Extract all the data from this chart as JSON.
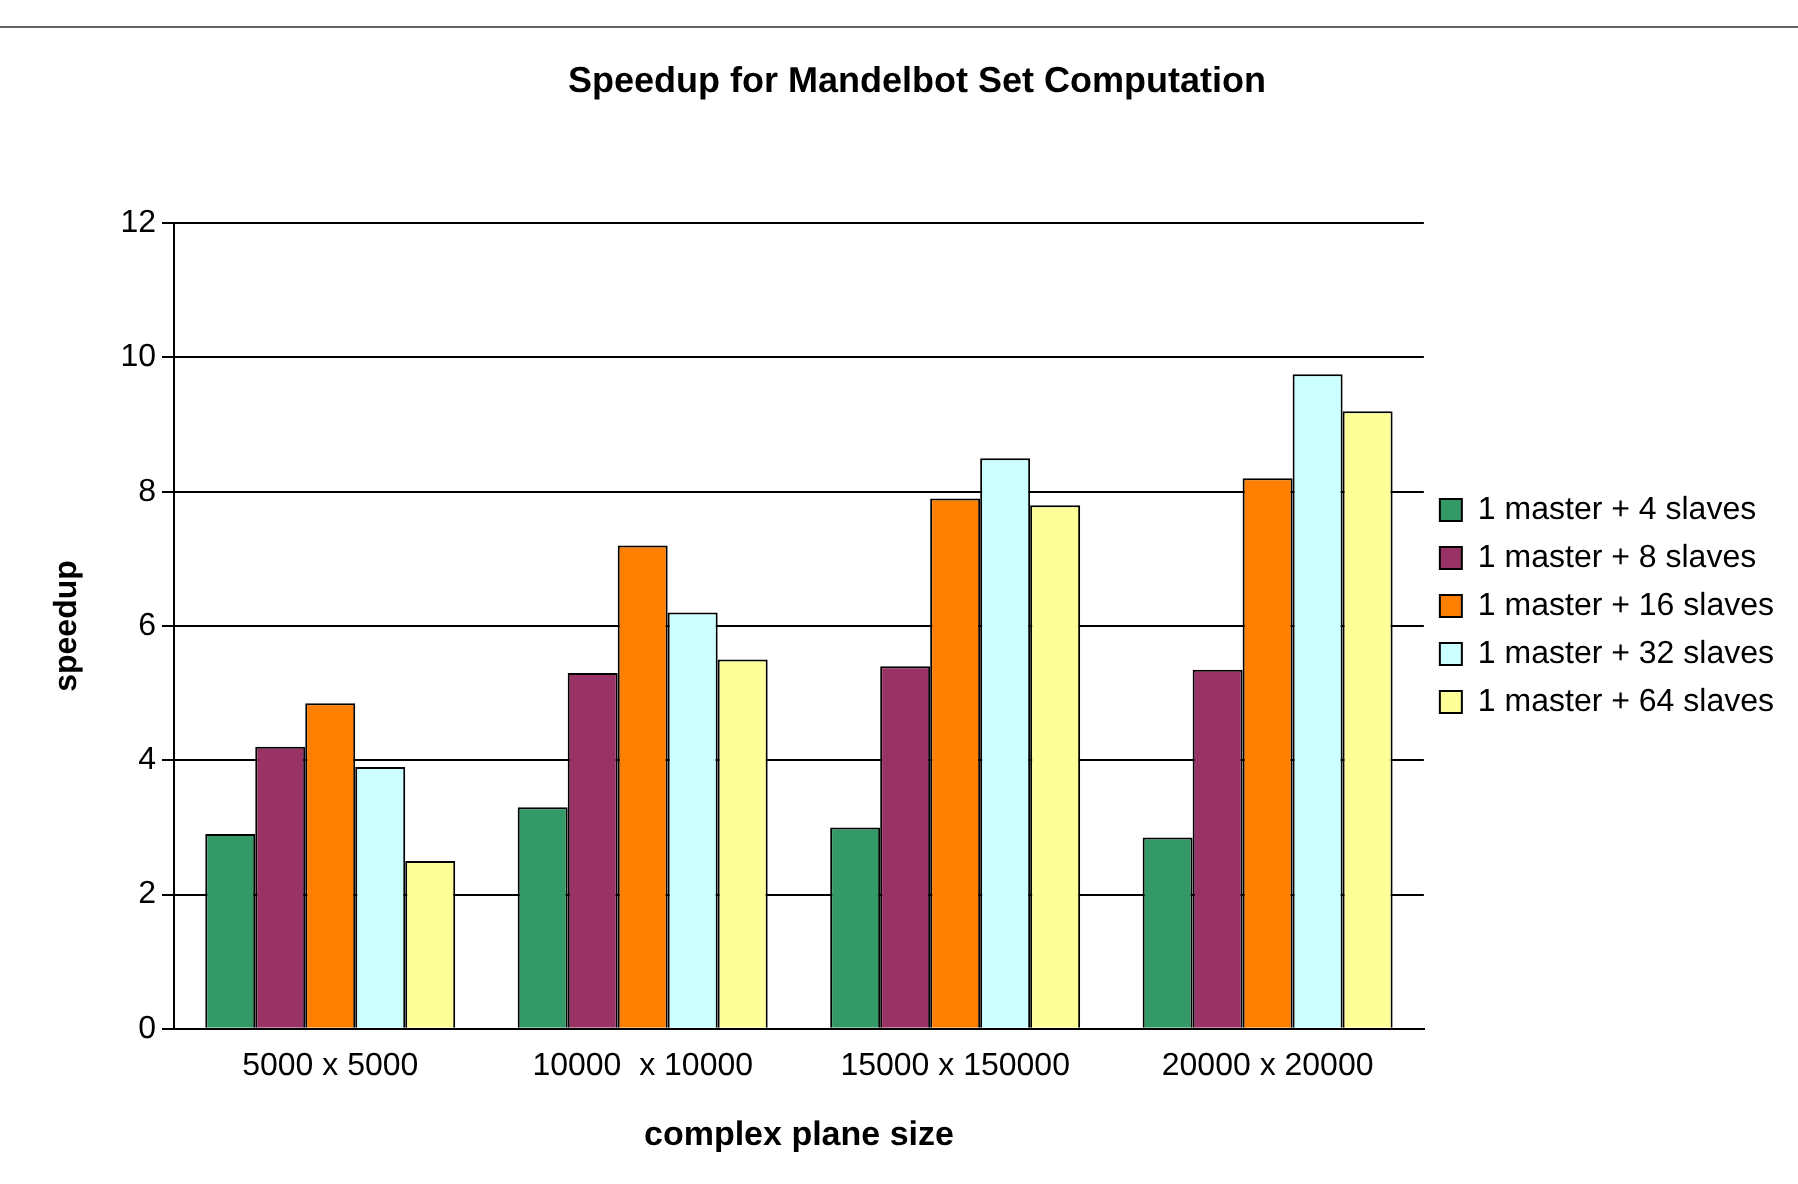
{
  "chart_data": {
    "type": "bar",
    "title": "Speedup for Mandelbot Set Computation",
    "xlabel": "complex plane size",
    "ylabel": "speedup",
    "categories": [
      "5000 x 5000",
      "10000  x 10000",
      "15000 x 150000",
      "20000 x 20000"
    ],
    "series": [
      {
        "name": "1 master + 4 slaves",
        "color": "#339966",
        "values": [
          2.9,
          3.3,
          3.0,
          2.85
        ]
      },
      {
        "name": "1 master + 8 slaves",
        "color": "#993366",
        "values": [
          4.2,
          5.3,
          5.4,
          5.35
        ]
      },
      {
        "name": "1 master + 16 slaves",
        "color": "#ff8000",
        "values": [
          4.85,
          7.2,
          7.9,
          8.2
        ]
      },
      {
        "name": "1 master + 32 slaves",
        "color": "#ccffff",
        "values": [
          3.9,
          6.2,
          8.5,
          9.75
        ]
      },
      {
        "name": "1 master + 64 slaves",
        "color": "#ffff99",
        "values": [
          2.5,
          5.5,
          7.8,
          9.2
        ]
      }
    ],
    "ylim": [
      0,
      12
    ],
    "yticks": [
      0,
      2,
      4,
      6,
      8,
      10,
      12
    ],
    "grid": "y",
    "legend": "right"
  }
}
